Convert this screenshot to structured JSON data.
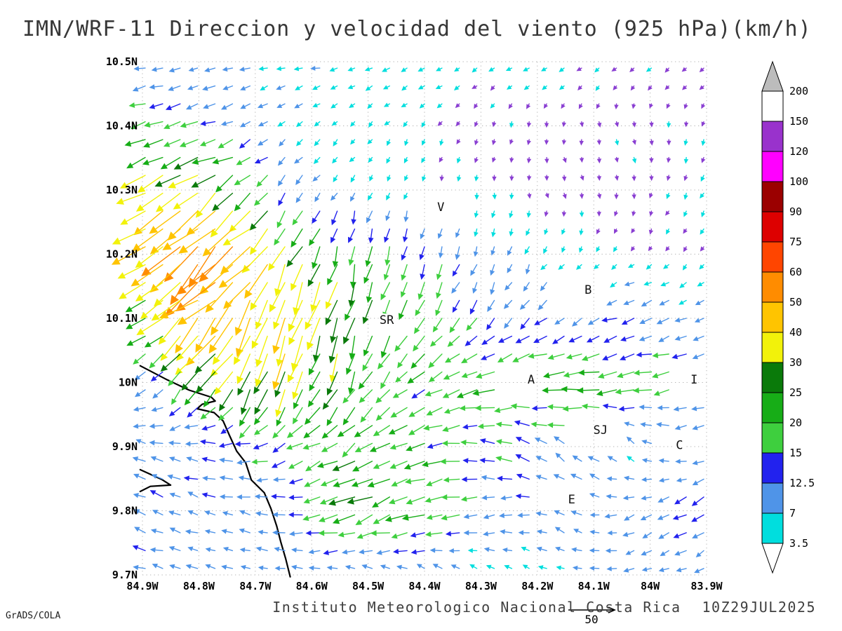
{
  "chart_data": {
    "type": "vector_field",
    "title": "IMN/WRF-11 Direccion y velocidad del viento (925 hPa)(km/h)",
    "model": "IMN/WRF-11",
    "variable": "Direccion y velocidad del viento",
    "level": "925 hPa",
    "units": "km/h",
    "xlabel": "",
    "ylabel": "",
    "grid": "dotted",
    "legend_position": "right",
    "lon_range": [
      -84.9,
      -83.9
    ],
    "lat_range": [
      9.7,
      10.5
    ],
    "x_ticks": [
      {
        "label": "84.9W",
        "lon": -84.9
      },
      {
        "label": "84.8W",
        "lon": -84.8
      },
      {
        "label": "84.7W",
        "lon": -84.7
      },
      {
        "label": "84.6W",
        "lon": -84.6
      },
      {
        "label": "84.5W",
        "lon": -84.5
      },
      {
        "label": "84.4W",
        "lon": -84.4
      },
      {
        "label": "84.3W",
        "lon": -84.3
      },
      {
        "label": "84.2W",
        "lon": -84.2
      },
      {
        "label": "84.1W",
        "lon": -84.1
      },
      {
        "label": "84W",
        "lon": -84.0
      },
      {
        "label": "83.9W",
        "lon": -83.9
      }
    ],
    "y_ticks": [
      {
        "label": "10.5N",
        "lat": 10.5
      },
      {
        "label": "10.4N",
        "lat": 10.4
      },
      {
        "label": "10.3N",
        "lat": 10.3
      },
      {
        "label": "10.2N",
        "lat": 10.2
      },
      {
        "label": "10.1N",
        "lat": 10.1
      },
      {
        "label": "10N",
        "lat": 10.0
      },
      {
        "label": "9.9N",
        "lat": 9.9
      },
      {
        "label": "9.8N",
        "lat": 9.8
      },
      {
        "label": "9.7N",
        "lat": 9.7
      }
    ],
    "colorbar": {
      "boundaries_top_to_bottom": [
        "200",
        "150",
        "120",
        "100",
        "90",
        "75",
        "60",
        "50",
        "40",
        "30",
        "25",
        "20",
        "15",
        "12.5",
        "7",
        "3.5"
      ],
      "box_colors_top_to_bottom": [
        "#ffffff",
        "#9932cc",
        "#ff00ff",
        "#9b0000",
        "#dd0000",
        "#ff4500",
        "#ff8c00",
        "#ffc400",
        "#f2f20a",
        "#0a7a0a",
        "#17ad17",
        "#3ecf3e",
        "#2222ee",
        "#4f94e8",
        "#00dede"
      ],
      "above_max_color": "#bcbcbc",
      "below_min_color": "#ffffff"
    },
    "speed_scale": {
      "levels": [
        3.5,
        7,
        12.5,
        15,
        20,
        25,
        30,
        40,
        50,
        60,
        75,
        90,
        100,
        120,
        150,
        200
      ],
      "vector_colors": [
        "#8a3fd2",
        "#00dede",
        "#4f94e8",
        "#2222ee",
        "#3ecf3e",
        "#17ad17",
        "#0a7a0a",
        "#f2f20a",
        "#ffc400",
        "#ff8c00",
        "#ff4500",
        "#dd0000",
        "#9b0000",
        "#ff00ff",
        "#9932cc",
        "#ffffff",
        "#bcbcbc"
      ]
    },
    "reference_vector": {
      "value": 50,
      "label": "50"
    },
    "stations": [
      {
        "label": "V",
        "lon": -84.371,
        "lat": 10.274
      },
      {
        "label": "B",
        "lon": -84.11,
        "lat": 10.145
      },
      {
        "label": "SR",
        "lon": -84.467,
        "lat": 10.098
      },
      {
        "label": "A",
        "lon": -84.211,
        "lat": 10.005
      },
      {
        "label": "I",
        "lon": -83.922,
        "lat": 10.005
      },
      {
        "label": "SJ",
        "lon": -84.088,
        "lat": 9.926
      },
      {
        "label": "C",
        "lon": -83.948,
        "lat": 9.903
      },
      {
        "label": "E",
        "lon": -84.139,
        "lat": 9.818
      }
    ],
    "coastline_lonlat_segments": [
      [
        [
          -84.904,
          10.026
        ],
        [
          -84.856,
          10.004
        ],
        [
          -84.817,
          9.988
        ],
        [
          -84.778,
          9.977
        ],
        [
          -84.771,
          9.971
        ],
        [
          -84.794,
          9.966
        ],
        [
          -84.803,
          9.959
        ],
        [
          -84.773,
          9.953
        ],
        [
          -84.757,
          9.94
        ],
        [
          -84.746,
          9.918
        ],
        [
          -84.733,
          9.893
        ],
        [
          -84.717,
          9.875
        ],
        [
          -84.707,
          9.848
        ],
        [
          -84.684,
          9.828
        ],
        [
          -84.672,
          9.803
        ],
        [
          -84.662,
          9.776
        ],
        [
          -84.655,
          9.752
        ],
        [
          -84.646,
          9.725
        ],
        [
          -84.638,
          9.697
        ]
      ],
      [
        [
          -84.904,
          9.864
        ],
        [
          -84.866,
          9.849
        ],
        [
          -84.85,
          9.84
        ],
        [
          -84.886,
          9.838
        ],
        [
          -84.904,
          9.83
        ]
      ]
    ],
    "wind_grid": {
      "lons": [
        -84.9,
        -84.775,
        -84.65,
        -84.525,
        -84.4,
        -84.275,
        -84.15,
        -84.025,
        -83.9
      ],
      "lats": [
        10.5,
        10.4,
        10.3,
        10.2,
        10.1,
        10.0,
        9.9,
        9.8,
        9.7
      ],
      "u": [
        [
          -9,
          -8,
          -7,
          -6,
          -5,
          -4,
          -4,
          -3,
          -3
        ],
        [
          -18,
          -14,
          -6,
          -3,
          -2,
          -1,
          0,
          1,
          -1
        ],
        [
          -26,
          -30,
          -8,
          -3,
          -1,
          0,
          1,
          0,
          -2
        ],
        [
          -32,
          -50,
          -15,
          -5,
          -4,
          -3,
          -2,
          -2,
          -2
        ],
        [
          -20,
          -32,
          -12,
          -8,
          -10,
          -8,
          -10,
          -12,
          -8
        ],
        [
          -10,
          -14,
          -8,
          -10,
          -15,
          -20,
          -22,
          -18,
          -12
        ],
        [
          -10,
          -12,
          -14,
          -18,
          -18,
          -15,
          -10,
          -6,
          -8
        ],
        [
          -12,
          -10,
          -10,
          -24,
          -20,
          -12,
          -8,
          -10,
          -12
        ],
        [
          -10,
          -9,
          -8,
          -7,
          -6,
          -5,
          -6,
          -8,
          -7
        ]
      ],
      "v": [
        [
          -2,
          -1,
          -1,
          -2,
          -2,
          -2,
          -2,
          -2,
          -2
        ],
        [
          -6,
          -5,
          -4,
          -3,
          -3,
          -3,
          -3,
          -3,
          -3
        ],
        [
          -14,
          -18,
          -10,
          -5,
          -4,
          -3,
          -3,
          -3,
          -4
        ],
        [
          -24,
          -42,
          -28,
          -22,
          -14,
          -8,
          -4,
          -2,
          -3
        ],
        [
          -10,
          -34,
          -38,
          -26,
          -16,
          -10,
          -6,
          -4,
          -3
        ],
        [
          -5,
          -20,
          -30,
          -18,
          -10,
          -5,
          -3,
          -4,
          -5
        ],
        [
          3,
          2,
          -5,
          -10,
          -5,
          4,
          7,
          5,
          -2
        ],
        [
          4,
          3,
          2,
          -9,
          -7,
          -3,
          5,
          -4,
          -7
        ],
        [
          2,
          2,
          1,
          3,
          4,
          3,
          2,
          -2,
          -3
        ]
      ]
    }
  },
  "annotations": {
    "institute": "Instituto Meteorologico Nacional Costa Rica",
    "datetime": "10Z29JUL2025",
    "credit": "GrADS/COLA"
  }
}
